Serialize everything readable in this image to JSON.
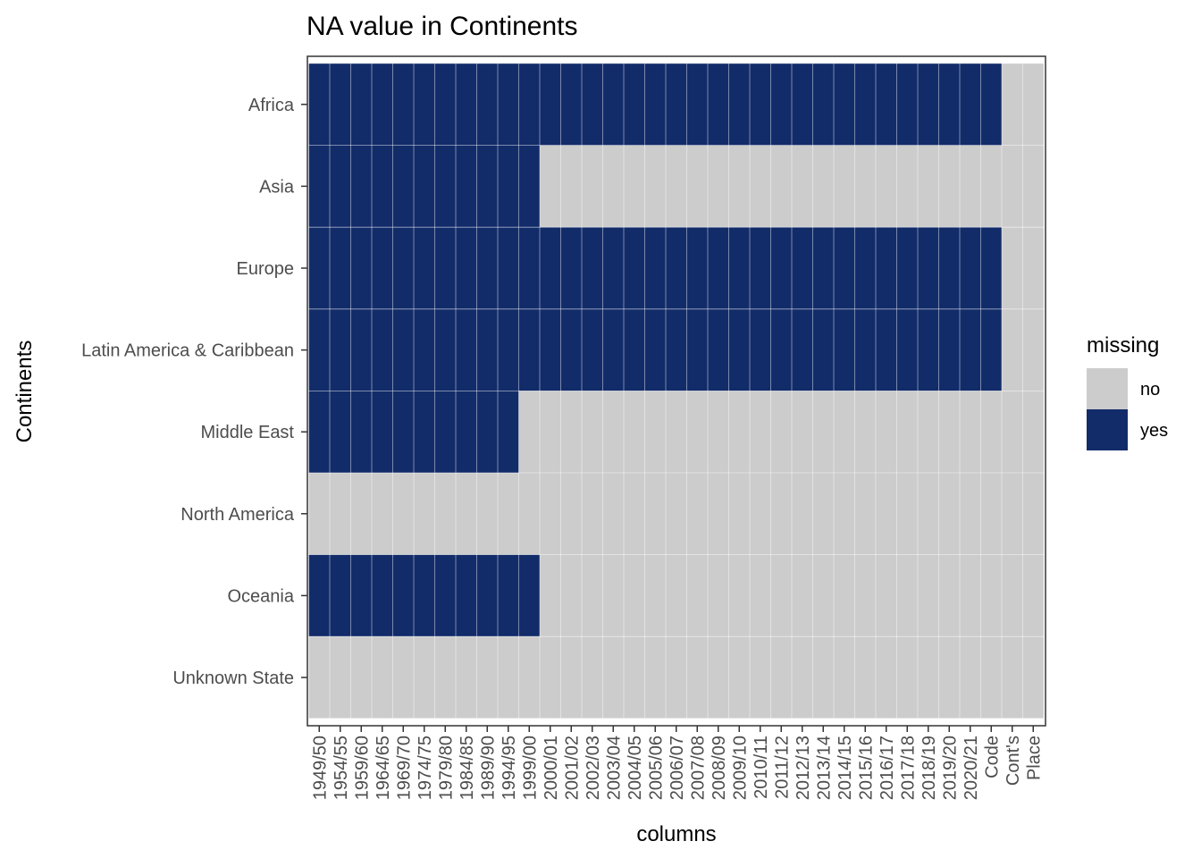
{
  "chart_data": {
    "type": "heatmap",
    "title": "NA value in Continents",
    "xlabel": "columns",
    "ylabel": "Continents",
    "x_categories": [
      "1949/50",
      "1954/55",
      "1959/60",
      "1964/65",
      "1969/70",
      "1974/75",
      "1979/80",
      "1984/85",
      "1989/90",
      "1994/95",
      "1999/00",
      "2000/01",
      "2001/02",
      "2002/03",
      "2003/04",
      "2004/05",
      "2005/06",
      "2006/07",
      "2007/08",
      "2008/09",
      "2009/10",
      "2010/11",
      "2011/12",
      "2012/13",
      "2013/14",
      "2014/15",
      "2015/16",
      "2016/17",
      "2017/18",
      "2018/19",
      "2019/20",
      "2020/21",
      "Code",
      "Cont's",
      "Place"
    ],
    "y_categories": [
      "Africa",
      "Asia",
      "Europe",
      "Latin America & Caribbean",
      "Middle East",
      "North America",
      "Oceania",
      "Unknown State"
    ],
    "missing_first_columns": {
      "Africa": 33,
      "Asia": 11,
      "Europe": 33,
      "Latin America & Caribbean": 33,
      "Middle East": 10,
      "North America": 0,
      "Oceania": 11,
      "Unknown State": 0
    },
    "legend": {
      "title": "missing",
      "position": "right",
      "entries": [
        {
          "label": "no",
          "color": "#cccccc"
        },
        {
          "label": "yes",
          "color": "#122c6a"
        }
      ]
    },
    "grid": true
  }
}
